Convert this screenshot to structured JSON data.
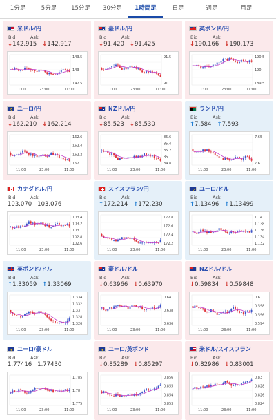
{
  "tabs": [
    {
      "label": "1分足",
      "active": false
    },
    {
      "label": "5分足",
      "active": false
    },
    {
      "label": "15分足",
      "active": false
    },
    {
      "label": "30分足",
      "active": false
    },
    {
      "label": "1時間足",
      "active": true
    },
    {
      "label": "日足",
      "active": false
    },
    {
      "label": "週足",
      "active": false
    },
    {
      "label": "月足",
      "active": false
    }
  ],
  "labels": {
    "bid": "Bid",
    "ask": "Ask"
  },
  "time_labels": [
    "11:00",
    "23:00",
    "11:00"
  ],
  "colors": {
    "up_candle": "#3a55c9",
    "down_candle": "#e0333a",
    "ma_line": "#c23fc9",
    "card_down_bg": "#fbe9eb",
    "card_up_bg": "#e5f0f9",
    "pair_text": "#2a4fb0"
  },
  "cards": [
    {
      "pair": "米ドル/円",
      "flag": "flag-us",
      "trend": "down",
      "arrow": "↓",
      "bid": "142.915",
      "ask": "142.917",
      "y_ticks": [
        "143.5",
        "143",
        "142.5"
      ]
    },
    {
      "pair": "豪ドル/円",
      "flag": "flag-au",
      "trend": "down",
      "arrow": "↓",
      "bid": "91.420",
      "ask": "91.425",
      "y_ticks": [
        "91.5",
        "91"
      ]
    },
    {
      "pair": "英ポンド/円",
      "flag": "flag-gb",
      "trend": "down",
      "arrow": "↓",
      "bid": "190.166",
      "ask": "190.173",
      "y_ticks": [
        "190.5",
        "190",
        "189.5"
      ]
    },
    {
      "pair": "ユーロ/円",
      "flag": "flag-eu",
      "trend": "down",
      "arrow": "↓",
      "bid": "162.210",
      "ask": "162.214",
      "y_ticks": [
        "162.6",
        "162.4",
        "162.2",
        "162"
      ]
    },
    {
      "pair": "NZドル/円",
      "flag": "flag-nz",
      "trend": "down",
      "arrow": "↓",
      "bid": "85.523",
      "ask": "85.530",
      "y_ticks": [
        "85.6",
        "85.4",
        "85.2",
        "85",
        "84.8"
      ]
    },
    {
      "pair": "ランド/円",
      "flag": "flag-za",
      "trend": "up",
      "arrow": "↑",
      "bid": "7.584",
      "ask": "7.593",
      "y_ticks": [
        "7.65",
        "7.6"
      ]
    },
    {
      "pair": "カナダドル/円",
      "flag": "flag-ca",
      "trend": "flat",
      "arrow": "",
      "bid": "103.070",
      "ask": "103.076",
      "y_ticks": [
        "103.4",
        "103.2",
        "103",
        "102.8",
        "102.6"
      ]
    },
    {
      "pair": "スイスフラン/円",
      "flag": "flag-ch",
      "trend": "up",
      "arrow": "↑",
      "bid": "172.214",
      "ask": "172.230",
      "y_ticks": [
        "172.8",
        "172.6",
        "172.4",
        "172.2"
      ]
    },
    {
      "pair": "ユーロ/ドル",
      "flag": "flag-eu",
      "trend": "up",
      "arrow": "↑",
      "bid": "1.13496",
      "ask": "1.13499",
      "y_ticks": [
        "1.14",
        "1.138",
        "1.136",
        "1.134",
        "1.132"
      ]
    },
    {
      "pair": "英ポンド/ドル",
      "flag": "flag-gb",
      "trend": "up",
      "arrow": "↑",
      "bid": "1.33059",
      "ask": "1.33069",
      "y_ticks": [
        "1.334",
        "1.332",
        "1.33",
        "1.328",
        "1.326"
      ]
    },
    {
      "pair": "豪ドル/ドル",
      "flag": "flag-au",
      "trend": "down",
      "arrow": "↓",
      "bid": "0.63966",
      "ask": "0.63970",
      "y_ticks": [
        "0.64",
        "0.638",
        "0.636"
      ]
    },
    {
      "pair": "NZドル/ドル",
      "flag": "flag-nz",
      "trend": "down",
      "arrow": "↓",
      "bid": "0.59834",
      "ask": "0.59848",
      "y_ticks": [
        "0.6",
        "0.598",
        "0.596",
        "0.594"
      ]
    },
    {
      "pair": "ユーロ/豪ドル",
      "flag": "flag-eu",
      "trend": "flat",
      "arrow": "",
      "bid": "1.77416",
      "ask": "1.77430",
      "y_ticks": [
        "1.785",
        "1.78",
        "1.775"
      ]
    },
    {
      "pair": "ユーロ/英ポンド",
      "flag": "flag-eu",
      "trend": "down",
      "arrow": "↓",
      "bid": "0.85289",
      "ask": "0.85297",
      "y_ticks": [
        "0.856",
        "0.855",
        "0.854",
        "0.853"
      ]
    },
    {
      "pair": "米ドル/スイスフラン",
      "flag": "flag-us",
      "trend": "down",
      "arrow": "↓",
      "bid": "0.82986",
      "ask": "0.83001",
      "y_ticks": [
        "0.83",
        "0.828",
        "0.826",
        "0.824"
      ]
    }
  ]
}
